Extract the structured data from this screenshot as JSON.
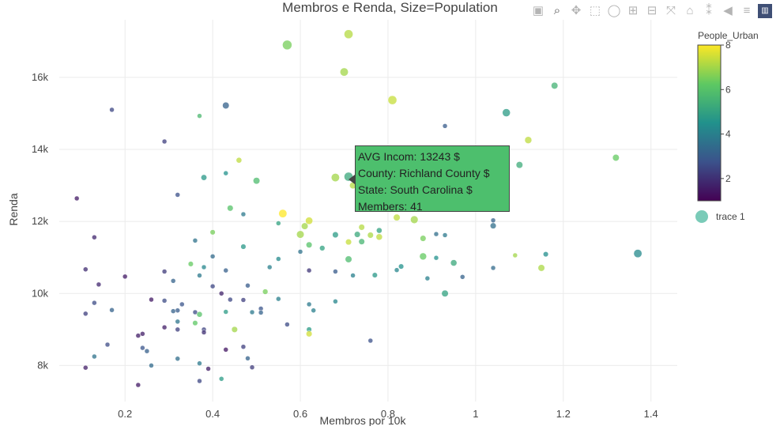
{
  "toolbar": {
    "icons": [
      "camera-icon",
      "zoom-icon",
      "pan-icon",
      "box-select-icon",
      "lasso-icon",
      "zoom-in-icon",
      "zoom-out-icon",
      "autoscale-icon",
      "home-icon",
      "spike-lines-icon",
      "hover-closest-icon",
      "hover-compare-icon",
      "plotly-logo"
    ]
  },
  "tooltip": {
    "line1": "AVG Incom:  13243 $",
    "line2": "County: Richland County $",
    "line3": "State: South Carolina $",
    "line4": "Members: 41",
    "color": "#4dbf6d"
  },
  "chart_data": {
    "type": "scatter",
    "title": "Membros e Renda, Size=Population",
    "xlabel": "Membros por 10k",
    "ylabel": "Renda",
    "xlim": [
      0.05,
      1.46
    ],
    "ylim": [
      7000,
      17600
    ],
    "x_ticks": [
      0.2,
      0.4,
      0.6,
      0.8,
      1,
      1.2,
      1.4
    ],
    "x_tick_labels": [
      "0.2",
      "0.4",
      "0.6",
      "0.8",
      "1",
      "1.2",
      "1.4"
    ],
    "y_ticks": [
      8000,
      10000,
      12000,
      14000,
      16000
    ],
    "y_tick_labels": [
      "8k",
      "10k",
      "12k",
      "14k",
      "16k"
    ],
    "grid": true,
    "colorscale": "Viridis",
    "colorbar": {
      "title": "People_Urban",
      "range": [
        1,
        8
      ],
      "ticks": [
        2,
        4,
        6,
        8
      ],
      "tick_labels": [
        "2",
        "4",
        "6",
        "8"
      ]
    },
    "legend": {
      "placement": "right",
      "entries": [
        "trace 1"
      ]
    },
    "series": [
      {
        "name": "trace 1",
        "points": [
          [
            0.57,
            16900,
            6.5,
            4
          ],
          [
            0.71,
            17200,
            7.2,
            3.5
          ],
          [
            0.7,
            16150,
            7.0,
            3
          ],
          [
            0.81,
            15370,
            7.4,
            3.5
          ],
          [
            1.18,
            15770,
            5.5,
            2
          ],
          [
            1.07,
            15020,
            4.8,
            2.8
          ],
          [
            0.43,
            15220,
            3.2,
            2
          ],
          [
            0.17,
            15100,
            2.5,
            1
          ],
          [
            0.37,
            14930,
            5.7,
            1
          ],
          [
            0.29,
            14220,
            2.3,
            1
          ],
          [
            0.93,
            14650,
            3.0,
            1
          ],
          [
            1.12,
            14260,
            7.3,
            2.2
          ],
          [
            1.1,
            13570,
            5.3,
            2
          ],
          [
            1.32,
            13770,
            6.3,
            2
          ],
          [
            0.46,
            13700,
            7.3,
            1.4
          ],
          [
            0.43,
            13340,
            4.5,
            1
          ],
          [
            0.71,
            13243,
            5.2,
            3.5
          ],
          [
            0.68,
            13220,
            7.0,
            3
          ],
          [
            0.5,
            13130,
            5.8,
            2
          ],
          [
            0.38,
            13220,
            4.7,
            1.5
          ],
          [
            0.72,
            13000,
            7.2,
            2
          ],
          [
            0.32,
            12740,
            2.7,
            1
          ],
          [
            0.09,
            12640,
            1.5,
            1
          ],
          [
            0.44,
            12370,
            6.0,
            1.6
          ],
          [
            0.47,
            12200,
            3.8,
            1
          ],
          [
            0.56,
            12220,
            8.0,
            3
          ],
          [
            0.62,
            12020,
            7.5,
            2.4
          ],
          [
            0.61,
            11870,
            7.0,
            2
          ],
          [
            0.82,
            12110,
            7.3,
            2
          ],
          [
            0.86,
            12050,
            7.0,
            2.6
          ],
          [
            0.74,
            11840,
            7.2,
            1.6
          ],
          [
            0.73,
            11640,
            5.2,
            1.6
          ],
          [
            0.76,
            11620,
            7.1,
            1.6
          ],
          [
            0.78,
            11750,
            5.0,
            1.4
          ],
          [
            0.6,
            11640,
            7.0,
            2.5
          ],
          [
            0.68,
            11630,
            4.8,
            1.6
          ],
          [
            0.74,
            11440,
            5.6,
            1.6
          ],
          [
            0.71,
            11430,
            7.4,
            1.6
          ],
          [
            0.78,
            11570,
            7.3,
            1.8
          ],
          [
            0.88,
            11530,
            6.5,
            1.6
          ],
          [
            0.91,
            11650,
            3.5,
            1
          ],
          [
            0.93,
            11620,
            3.8,
            1
          ],
          [
            1.04,
            12030,
            3.2,
            1
          ],
          [
            1.04,
            11880,
            3.5,
            1.6
          ],
          [
            0.55,
            11950,
            5.0,
            1
          ],
          [
            0.4,
            11700,
            6.5,
            1.2
          ],
          [
            0.36,
            11470,
            3.6,
            1
          ],
          [
            0.13,
            11560,
            1.8,
            1
          ],
          [
            0.47,
            11300,
            4.7,
            1.2
          ],
          [
            0.62,
            11350,
            6.0,
            1.6
          ],
          [
            0.6,
            11160,
            3.6,
            1
          ],
          [
            0.65,
            11260,
            5.0,
            1.3
          ],
          [
            0.4,
            11030,
            3.4,
            1
          ],
          [
            0.35,
            10820,
            6.3,
            1.2
          ],
          [
            0.43,
            10640,
            3.1,
            1
          ],
          [
            0.38,
            10730,
            4.2,
            1
          ],
          [
            0.53,
            10730,
            4.0,
            1
          ],
          [
            0.55,
            10960,
            4.3,
            1
          ],
          [
            0.62,
            10640,
            2.1,
            1
          ],
          [
            0.68,
            10610,
            3.0,
            1
          ],
          [
            0.71,
            10950,
            5.8,
            2
          ],
          [
            0.72,
            10500,
            4.0,
            1
          ],
          [
            0.77,
            10510,
            4.7,
            1.2
          ],
          [
            0.82,
            10650,
            4.2,
            1
          ],
          [
            0.83,
            10750,
            4.5,
            1.2
          ],
          [
            0.88,
            11030,
            6.3,
            2.2
          ],
          [
            0.89,
            10420,
            4.0,
            1
          ],
          [
            0.91,
            10990,
            4.5,
            1
          ],
          [
            0.95,
            10850,
            5.2,
            1.8
          ],
          [
            0.97,
            10460,
            3.2,
            1
          ],
          [
            1.04,
            10710,
            3.4,
            1
          ],
          [
            1.09,
            11060,
            7.0,
            1
          ],
          [
            1.15,
            10710,
            7.1,
            2
          ],
          [
            1.16,
            11090,
            4.4,
            1.2
          ],
          [
            1.37,
            11110,
            4.3,
            3
          ],
          [
            0.93,
            10000,
            5.0,
            2
          ],
          [
            0.11,
            10670,
            1.9,
            1
          ],
          [
            0.14,
            10250,
            1.8,
            1
          ],
          [
            0.2,
            10470,
            1.5,
            1
          ],
          [
            0.29,
            10610,
            2.2,
            1
          ],
          [
            0.31,
            10350,
            3.2,
            1
          ],
          [
            0.37,
            10500,
            3.8,
            1
          ],
          [
            0.4,
            10200,
            2.5,
            1
          ],
          [
            0.42,
            10000,
            1.7,
            1
          ],
          [
            0.48,
            10220,
            3.0,
            1
          ],
          [
            0.52,
            10050,
            6.5,
            1.3
          ],
          [
            0.55,
            9850,
            4.0,
            1
          ],
          [
            0.62,
            9700,
            3.8,
            1
          ],
          [
            0.68,
            9780,
            4.2,
            1
          ],
          [
            0.44,
            9830,
            2.5,
            1
          ],
          [
            0.47,
            9820,
            2.3,
            1
          ],
          [
            0.26,
            9830,
            1.5,
            1
          ],
          [
            0.29,
            9800,
            2.6,
            1
          ],
          [
            0.33,
            9700,
            2.8,
            1
          ],
          [
            0.32,
            9530,
            3.0,
            1
          ],
          [
            0.31,
            9510,
            3.2,
            1
          ],
          [
            0.36,
            9480,
            2.6,
            1
          ],
          [
            0.37,
            9420,
            6.0,
            1.4
          ],
          [
            0.43,
            9490,
            4.8,
            1
          ],
          [
            0.49,
            9480,
            3.8,
            1
          ],
          [
            0.51,
            9580,
            2.8,
            1
          ],
          [
            0.51,
            9470,
            3.2,
            1
          ],
          [
            0.57,
            9140,
            2.6,
            1
          ],
          [
            0.62,
            9000,
            4.8,
            1.2
          ],
          [
            0.62,
            8880,
            7.5,
            1.6
          ],
          [
            0.63,
            9530,
            4.0,
            1
          ],
          [
            0.45,
            9000,
            7.0,
            1.6
          ],
          [
            0.36,
            9180,
            6.2,
            1.2
          ],
          [
            0.38,
            9000,
            2.4,
            1
          ],
          [
            0.38,
            8920,
            2.0,
            1
          ],
          [
            0.32,
            9000,
            2.3,
            1
          ],
          [
            0.32,
            9220,
            3.7,
            1
          ],
          [
            0.29,
            9060,
            1.6,
            1
          ],
          [
            0.24,
            8880,
            1.6,
            1
          ],
          [
            0.17,
            9540,
            3.2,
            1
          ],
          [
            0.13,
            9740,
            2.6,
            1
          ],
          [
            0.11,
            9440,
            2.3,
            1
          ],
          [
            0.16,
            8580,
            2.6,
            1
          ],
          [
            0.23,
            8830,
            1.6,
            1
          ],
          [
            0.24,
            8490,
            2.8,
            1
          ],
          [
            0.25,
            8400,
            3.1,
            1
          ],
          [
            0.32,
            8190,
            3.5,
            1
          ],
          [
            0.43,
            8440,
            1.4,
            1
          ],
          [
            0.47,
            8520,
            2.3,
            1
          ],
          [
            0.48,
            8200,
            3.2,
            1
          ],
          [
            0.76,
            8690,
            2.7,
            1
          ],
          [
            0.13,
            8250,
            3.6,
            1
          ],
          [
            0.11,
            7940,
            1.6,
            1
          ],
          [
            0.26,
            8000,
            3.4,
            1
          ],
          [
            0.37,
            8060,
            3.8,
            1
          ],
          [
            0.39,
            7910,
            1.6,
            1
          ],
          [
            0.49,
            7950,
            2.2,
            1
          ],
          [
            0.23,
            7460,
            1.5,
            1
          ],
          [
            0.37,
            7570,
            2.5,
            1
          ],
          [
            0.42,
            7630,
            4.8,
            1
          ]
        ]
      }
    ]
  }
}
